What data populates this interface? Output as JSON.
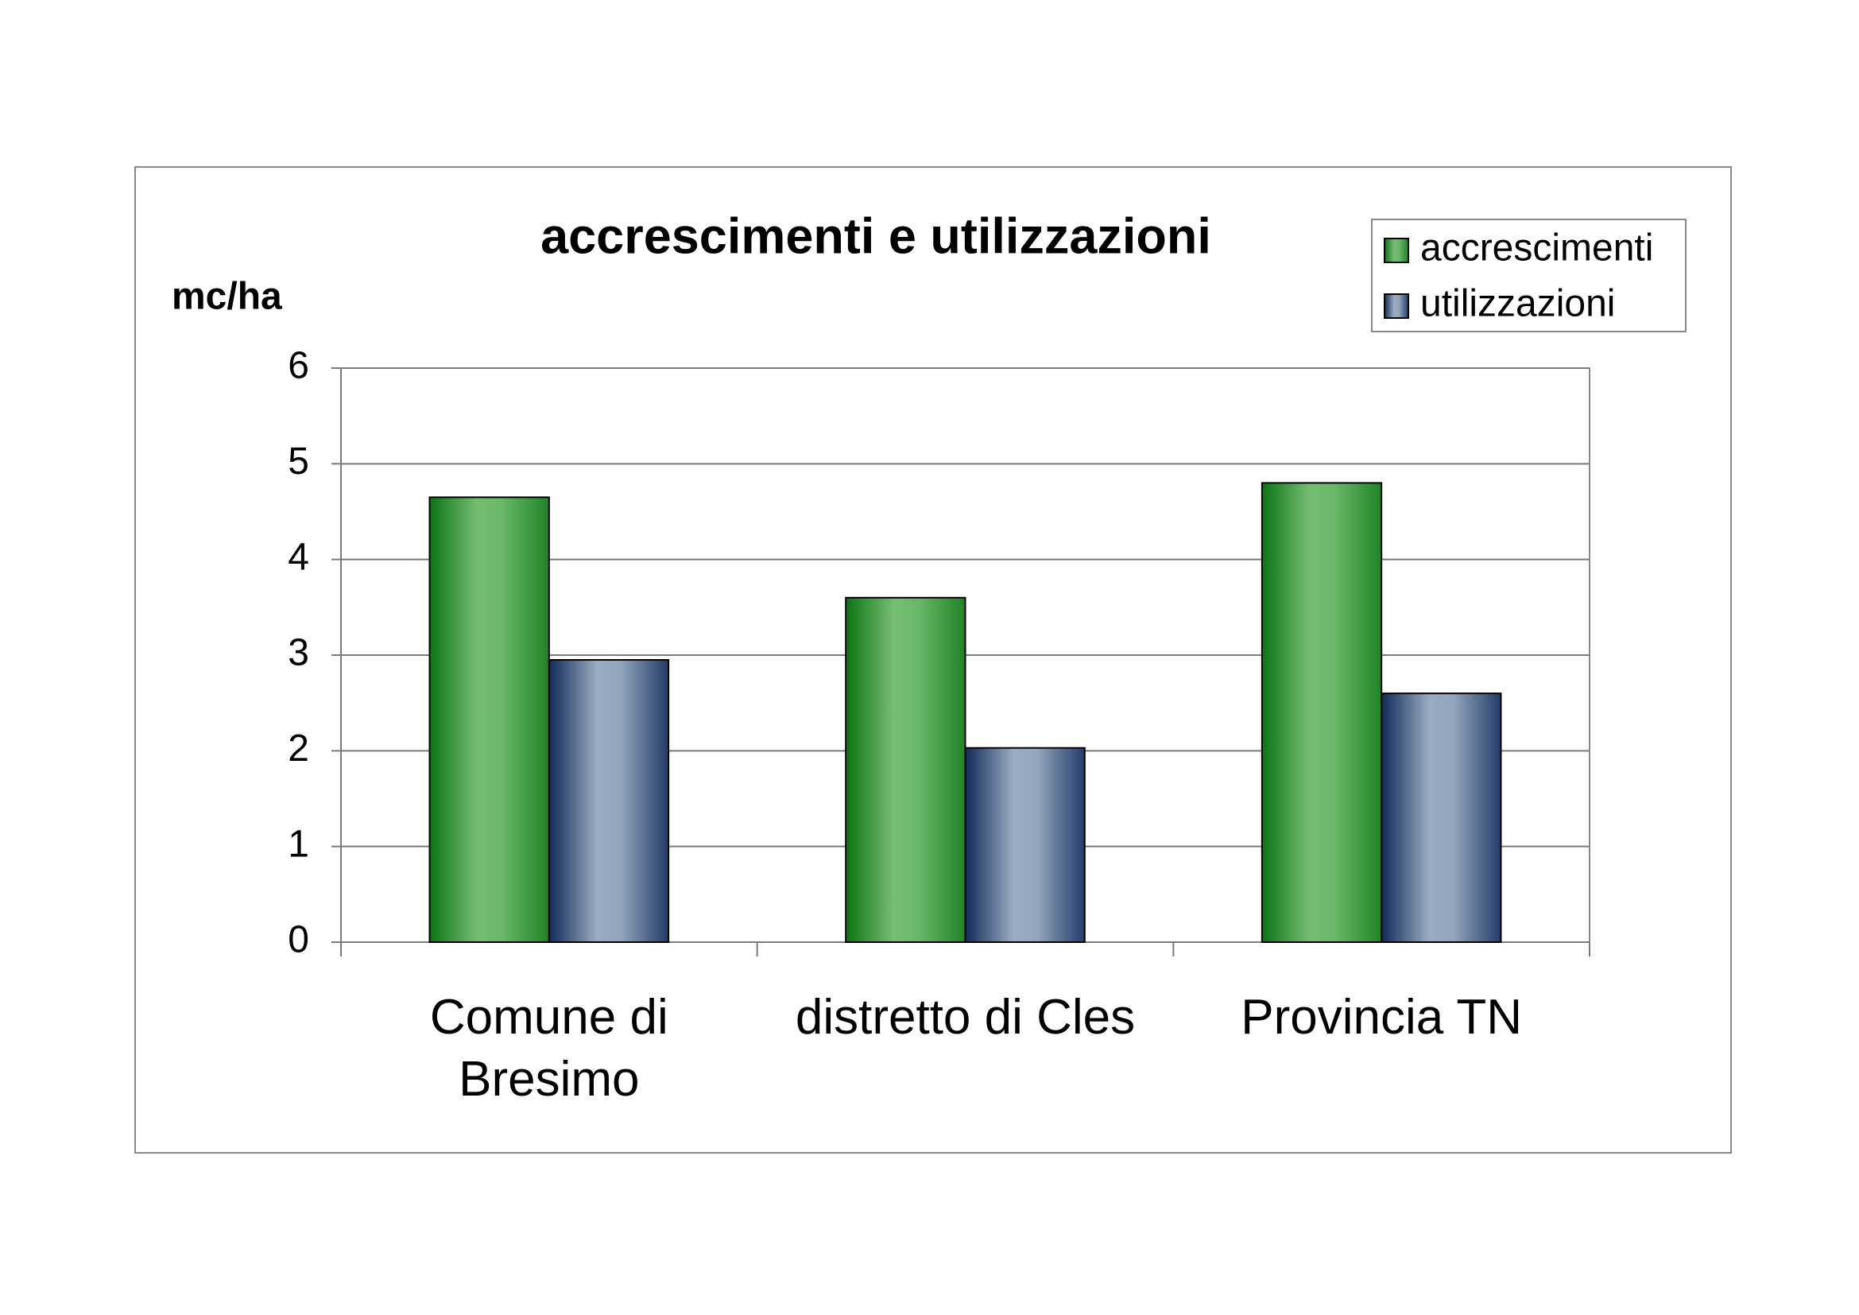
{
  "chart_data": {
    "type": "bar",
    "title": "accrescimenti e utilizzazioni",
    "y_label": "mc/ha",
    "categories": [
      "Comune di Bresimo",
      "distretto di Cles",
      "Provincia TN"
    ],
    "series": [
      {
        "name": "accrescimenti",
        "color": "#3a9a3f",
        "values": [
          4.65,
          3.6,
          4.8
        ]
      },
      {
        "name": "utilizzazioni",
        "color": "#5a7096",
        "values": [
          2.95,
          2.03,
          2.6
        ]
      }
    ],
    "ylim": [
      0,
      6
    ],
    "yticks": [
      0,
      1,
      2,
      3,
      4,
      5,
      6
    ],
    "grid": true,
    "legend": "top-right"
  }
}
